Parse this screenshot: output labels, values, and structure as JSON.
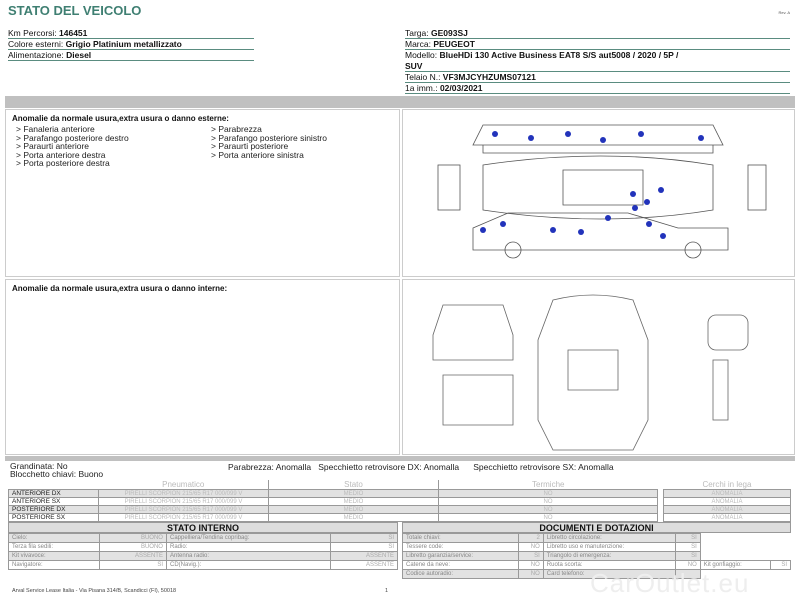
{
  "header": {
    "title": "STATO DEL VEICOLO",
    "rev": "Rev. A"
  },
  "vehicle_left": [
    {
      "label": "Km Percorsi: ",
      "value": "146451"
    },
    {
      "label": "Colore esterni: ",
      "value": "Grigio Platinium metallizzato"
    },
    {
      "label": "Alimentazione: ",
      "value": "Diesel"
    }
  ],
  "vehicle_right": {
    "targa": {
      "label": "Targa: ",
      "value": "GE093SJ"
    },
    "marca": {
      "label": "Marca: ",
      "value": "PEUGEOT"
    },
    "modello": {
      "label": "Modello: ",
      "value": "BlueHDi 130 Active Business EAT8 S/S aut5008 / 2020 / 5P /",
      "value2": "SUV"
    },
    "telaio": {
      "label": "Telaio N.: ",
      "value": "VF3MJCYHZUMS07121"
    },
    "imm": {
      "label": "1a imm.: ",
      "value": "02/03/2021"
    }
  },
  "external": {
    "heading": "Anomalie da normale usura,extra usura o danno esterne:",
    "col1": [
      "> Fanaleria anteriore",
      "> Parafango posteriore destro",
      "> Paraurti anteriore",
      "> Porta anteriore destra",
      "> Porta posteriore destra"
    ],
    "col2": [
      "> Parabrezza",
      "> Parafango posteriore sinistro",
      "> Paraurti posteriore",
      "> Porta anteriore sinistra"
    ]
  },
  "internal": {
    "heading": "Anomalie da normale usura,extra usura o danno interne:"
  },
  "status_line": {
    "grandinata": "Grandinata: No",
    "blocchetto": "Blocchetto chiavi: Buono",
    "parabrezza": "Parabrezza: Anomalla",
    "spec_dx": "Specchietto retrovisore DX: Anomalla",
    "spec_sx": "Specchietto retrovisore SX: Anomalla"
  },
  "tyres": {
    "headers": [
      "Pneumatico",
      "Stato",
      "Termiche",
      "Cerchi in lega"
    ],
    "rows": [
      {
        "pos": "ANTERIORE DX",
        "tyre": "PIRELLI SCORPION 215/65 R17 000/099 V",
        "stato": "MEDIO",
        "termiche": "NO",
        "cerchi": "ANOMALIA"
      },
      {
        "pos": "ANTERIORE SX",
        "tyre": "PIRELLI SCORPION 215/65 R17 000/099 V",
        "stato": "MEDIO",
        "termiche": "NO",
        "cerchi": "ANOMALIA"
      },
      {
        "pos": "POSTERIORE DX",
        "tyre": "PIRELLI SCORPION 215/65 R17 000/099 V",
        "stato": "MEDIO",
        "termiche": "NO",
        "cerchi": "ANOMALIA"
      },
      {
        "pos": "POSTERIORE SX",
        "tyre": "PIRELLI SCORPION 215/65 R17 000/099 V",
        "stato": "MEDIO",
        "termiche": "NO",
        "cerchi": "ANOMALIA"
      }
    ]
  },
  "stato_interno": {
    "title": "STATO INTERNO",
    "rows": [
      [
        "Cielo:",
        "BUONO",
        "Cappelliera/Tendina copribag:",
        "SI"
      ],
      [
        "Terza fila sedili:",
        "BUONO",
        "Radio:",
        "SI"
      ],
      [
        "Kit vivavoce:",
        "ASSENTE",
        "Antenna radio:",
        "ASSENTE"
      ],
      [
        "Navigatore:",
        "SI",
        "CD(Navig.):",
        "ASSENTE"
      ]
    ]
  },
  "documenti": {
    "title": "DOCUMENTI E DOTAZIONI",
    "rows": [
      [
        "Totale chiavi:",
        "2",
        "Libretto circolazione:",
        "SI"
      ],
      [
        "Tessere code:",
        "NO",
        "Libretto uso e manutenzione:",
        "SI"
      ],
      [
        "Libretto garanzia/service:",
        "SI",
        "Triangolo di emergenza:",
        "SI"
      ],
      [
        "Catene da neve:",
        "NO",
        "Ruota scorta:",
        "NO",
        "Kit gonfiaggio:",
        "SI"
      ],
      [
        "Codice autoradio:",
        "NO",
        "Card telefono:",
        ""
      ]
    ]
  },
  "footer": {
    "address": "Arval Service Lease Italia - Via Pisana 314/B, Scandicci (FI), 50018",
    "page": "1",
    "watermark": "CarOutlet.eu"
  },
  "colors": {
    "title": "#3f7f72",
    "damage_dot": "#2233bb"
  }
}
